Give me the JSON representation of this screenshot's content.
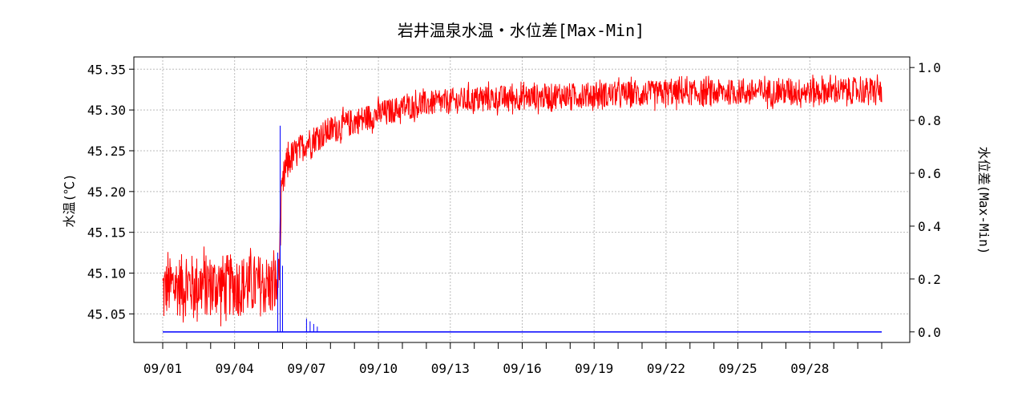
{
  "chart_data": {
    "type": "line",
    "title": "岩井温泉水温・水位差[Max-Min]",
    "ylabel_left": "水温(℃)",
    "ylabel_right": "水位差(Max-Min)",
    "x_ticks": [
      "09/01",
      "09/04",
      "09/07",
      "09/10",
      "09/13",
      "09/16",
      "09/19",
      "09/22",
      "09/25",
      "09/28"
    ],
    "x_range_days": [
      1,
      31
    ],
    "ylim_left": [
      45.015,
      45.365
    ],
    "yticks_left": [
      "45.05",
      "45.10",
      "45.15",
      "45.20",
      "45.25",
      "45.30",
      "45.35"
    ],
    "ylim_right": [
      -0.04,
      1.04
    ],
    "yticks_right": [
      "0.0",
      "0.2",
      "0.4",
      "0.6",
      "0.8",
      "1.0"
    ],
    "grid": true,
    "series": [
      {
        "axis": "left",
        "color": "#ff0000",
        "envelope": {
          "x": [
            1.0,
            1.5,
            2.0,
            3.0,
            4.0,
            5.0,
            5.8,
            5.9,
            6.0,
            6.1,
            6.3,
            6.6,
            7.0,
            8.0,
            9.0,
            10.0,
            11.0,
            12.0,
            13.0,
            14.0,
            16.0,
            18.0,
            20.0,
            22.0,
            24.0,
            26.0,
            28.0,
            30.0,
            31.0
          ],
          "low": [
            45.03,
            45.03,
            45.03,
            45.03,
            45.03,
            45.03,
            45.03,
            45.1,
            45.16,
            45.19,
            45.21,
            45.22,
            45.235,
            45.25,
            45.262,
            45.272,
            45.28,
            45.285,
            45.288,
            45.29,
            45.293,
            45.295,
            45.297,
            45.298,
            45.299,
            45.3,
            45.3,
            45.3,
            45.3
          ],
          "high": [
            45.13,
            45.14,
            45.14,
            45.14,
            45.14,
            45.14,
            45.14,
            45.19,
            45.24,
            45.26,
            45.27,
            45.275,
            45.285,
            45.3,
            45.31,
            45.318,
            45.325,
            45.33,
            45.333,
            45.336,
            45.338,
            45.34,
            45.342,
            45.343,
            45.344,
            45.345,
            45.346,
            45.347,
            45.348
          ]
        }
      },
      {
        "axis": "right",
        "color": "#0000ff",
        "baseline": 0.0,
        "spikes": [
          {
            "x": 5.8,
            "y": 0.3
          },
          {
            "x": 5.9,
            "y": 0.78
          },
          {
            "x": 6.0,
            "y": 0.25
          },
          {
            "x": 7.0,
            "y": 0.05
          },
          {
            "x": 7.15,
            "y": 0.04
          },
          {
            "x": 7.3,
            "y": 0.03
          },
          {
            "x": 7.45,
            "y": 0.02
          }
        ]
      }
    ]
  }
}
